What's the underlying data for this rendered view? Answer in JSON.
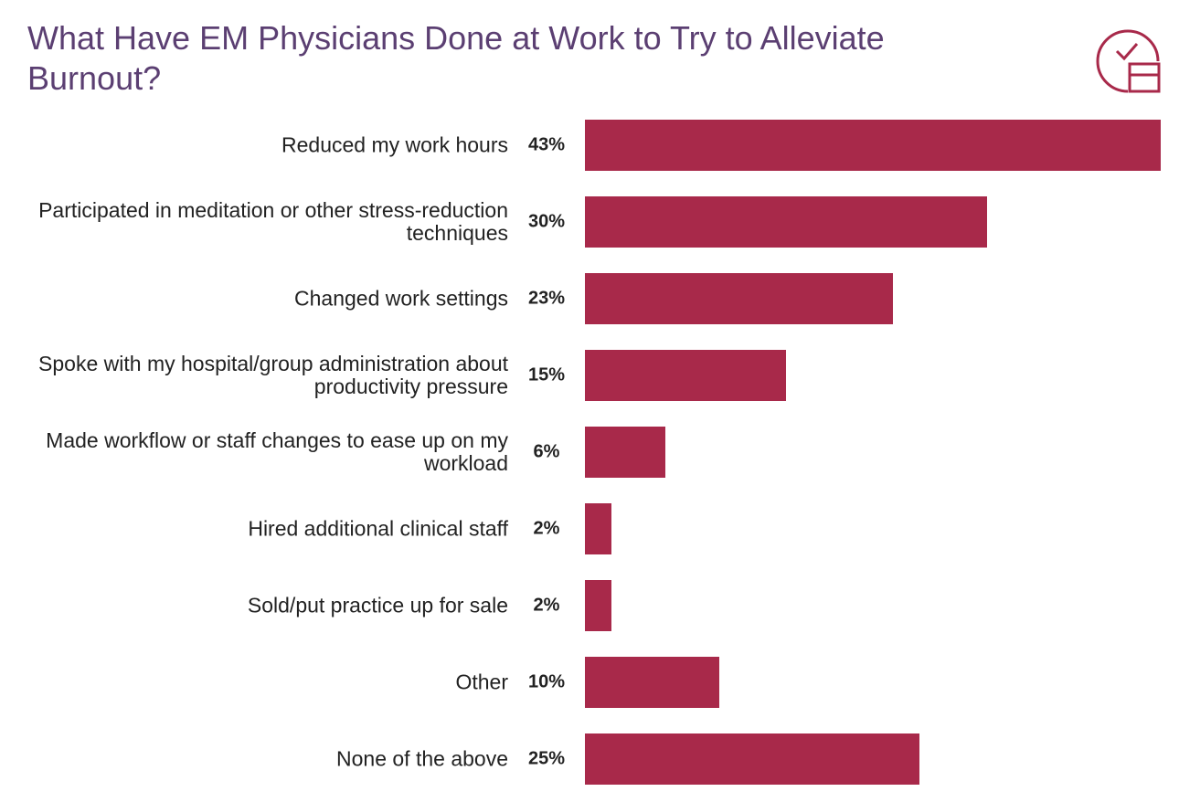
{
  "chart_data": {
    "type": "bar",
    "orientation": "horizontal",
    "title": "What Have EM Physicians Done at Work to Try to Alleviate Burnout?",
    "categories": [
      "Reduced my work hours",
      "Participated in meditation or other stress-reduction techniques",
      "Changed work settings",
      "Spoke with my hospital/group administration about productivity pressure",
      "Made workflow or staff changes to ease up on my workload",
      "Hired additional clinical staff",
      "Sold/put practice up for sale",
      "Other",
      "None of the above"
    ],
    "values": [
      43,
      30,
      23,
      15,
      6,
      2,
      2,
      10,
      25
    ],
    "value_labels": [
      "43%",
      "30%",
      "23%",
      "15%",
      "6%",
      "2%",
      "2%",
      "10%",
      "25%"
    ],
    "color": "#a8294a"
  }
}
